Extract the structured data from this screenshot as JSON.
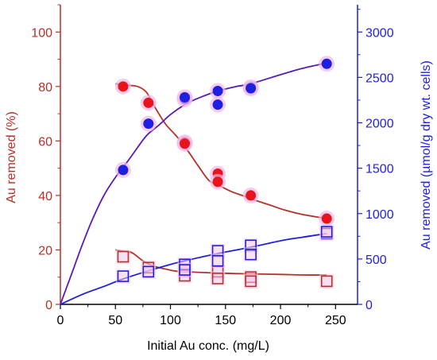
{
  "chart_data": {
    "type": "scatter",
    "xlabel": "Initial Au conc. (mg/L)",
    "ylabel_left": "Au removed (%)",
    "ylabel_right": "Au removed (µmol/g dry wt. cells)",
    "xlim": [
      0,
      270
    ],
    "ylim_left": [
      0,
      110
    ],
    "ylim_right": [
      0,
      3300
    ],
    "x_ticks": [
      0,
      50,
      100,
      150,
      200,
      250
    ],
    "y_left_ticks": [
      0,
      20,
      40,
      60,
      80,
      100
    ],
    "y_right_ticks": [
      0,
      500,
      1000,
      1500,
      2000,
      2500,
      3000
    ],
    "grid": false,
    "legend": "none",
    "colors": {
      "red": "#e8141b",
      "red_dark": "#b5322a",
      "blue": "#1f1fe0",
      "curve_blue_uptake": "#5a1ab8",
      "axis_left": "#b5322a",
      "axis_right": "#1f1fe0",
      "axis_bottom": "#000000"
    },
    "series": [
      {
        "id": "removal-percent-filled",
        "axis": "left",
        "marker": "filled-circle",
        "color": "#e8141b",
        "points": [
          [
            57,
            80
          ],
          [
            80,
            74
          ],
          [
            113,
            59.5
          ],
          [
            113,
            59
          ],
          [
            143,
            48
          ],
          [
            143,
            45
          ],
          [
            173,
            40
          ],
          [
            242,
            31.5
          ]
        ]
      },
      {
        "id": "uptake-filled",
        "axis": "right",
        "marker": "filled-circle",
        "color": "#1f1fe0",
        "points": [
          [
            57,
            1480
          ],
          [
            80,
            1990
          ],
          [
            113,
            2260
          ],
          [
            113,
            2280
          ],
          [
            143,
            2350
          ],
          [
            143,
            2200
          ],
          [
            173,
            2390
          ],
          [
            173,
            2380
          ],
          [
            242,
            2650
          ]
        ]
      },
      {
        "id": "removal-percent-open",
        "axis": "left",
        "marker": "open-square",
        "color": "#b5322a",
        "points": [
          [
            57,
            17.5
          ],
          [
            80,
            13.5
          ],
          [
            113,
            12.5
          ],
          [
            113,
            10.5
          ],
          [
            143,
            12
          ],
          [
            143,
            9.5
          ],
          [
            173,
            10
          ],
          [
            173,
            8.5
          ],
          [
            242,
            8.5
          ]
        ]
      },
      {
        "id": "uptake-open",
        "axis": "right",
        "marker": "open-square",
        "color": "#1f1fe0",
        "points": [
          [
            57,
            310
          ],
          [
            80,
            360
          ],
          [
            113,
            440
          ],
          [
            113,
            380
          ],
          [
            143,
            590
          ],
          [
            143,
            480
          ],
          [
            173,
            650
          ],
          [
            173,
            550
          ],
          [
            242,
            780
          ],
          [
            242,
            800
          ]
        ]
      }
    ],
    "curves": [
      {
        "id": "removal-percent-fit-filled",
        "axis": "left",
        "color": "#b5322a",
        "points": [
          [
            50,
            81
          ],
          [
            60,
            80.5
          ],
          [
            70,
            80
          ],
          [
            78,
            78
          ],
          [
            85,
            73
          ],
          [
            95,
            66.5
          ],
          [
            105,
            62
          ],
          [
            113,
            58
          ],
          [
            125,
            51
          ],
          [
            135,
            45.5
          ],
          [
            145,
            43.5
          ],
          [
            155,
            41.5
          ],
          [
            165,
            40
          ],
          [
            175,
            38.5
          ],
          [
            190,
            36.5
          ],
          [
            205,
            34.5
          ],
          [
            220,
            33
          ],
          [
            242,
            31.5
          ]
        ]
      },
      {
        "id": "uptake-fit-filled",
        "axis": "right",
        "color": "#5a1ab8",
        "points": [
          [
            0,
            0
          ],
          [
            10,
            330
          ],
          [
            20,
            660
          ],
          [
            30,
            960
          ],
          [
            40,
            1210
          ],
          [
            50,
            1400
          ],
          [
            57,
            1510
          ],
          [
            65,
            1640
          ],
          [
            75,
            1810
          ],
          [
            80,
            1880
          ],
          [
            90,
            1980
          ],
          [
            100,
            2090
          ],
          [
            113,
            2200
          ],
          [
            125,
            2270
          ],
          [
            143,
            2350
          ],
          [
            160,
            2400
          ],
          [
            173,
            2430
          ],
          [
            200,
            2530
          ],
          [
            220,
            2600
          ],
          [
            242,
            2660
          ]
        ]
      },
      {
        "id": "removal-percent-fit-open",
        "axis": "left",
        "color": "#b5322a",
        "points": [
          [
            50,
            20
          ],
          [
            57,
            19.5
          ],
          [
            65,
            19
          ],
          [
            75,
            16
          ],
          [
            85,
            14
          ],
          [
            95,
            13
          ],
          [
            105,
            12.2
          ],
          [
            113,
            12
          ],
          [
            130,
            11.7
          ],
          [
            143,
            11.5
          ],
          [
            160,
            11.3
          ],
          [
            173,
            11.2
          ],
          [
            200,
            11
          ],
          [
            220,
            10.8
          ],
          [
            242,
            10.8
          ]
        ]
      },
      {
        "id": "uptake-fit-open",
        "axis": "right",
        "color": "#1f1fe0",
        "points": [
          [
            0,
            0
          ],
          [
            20,
            110
          ],
          [
            40,
            200
          ],
          [
            57,
            280
          ],
          [
            80,
            370
          ],
          [
            100,
            440
          ],
          [
            113,
            480
          ],
          [
            143,
            560
          ],
          [
            173,
            630
          ],
          [
            200,
            700
          ],
          [
            220,
            740
          ],
          [
            242,
            780
          ]
        ]
      }
    ]
  }
}
